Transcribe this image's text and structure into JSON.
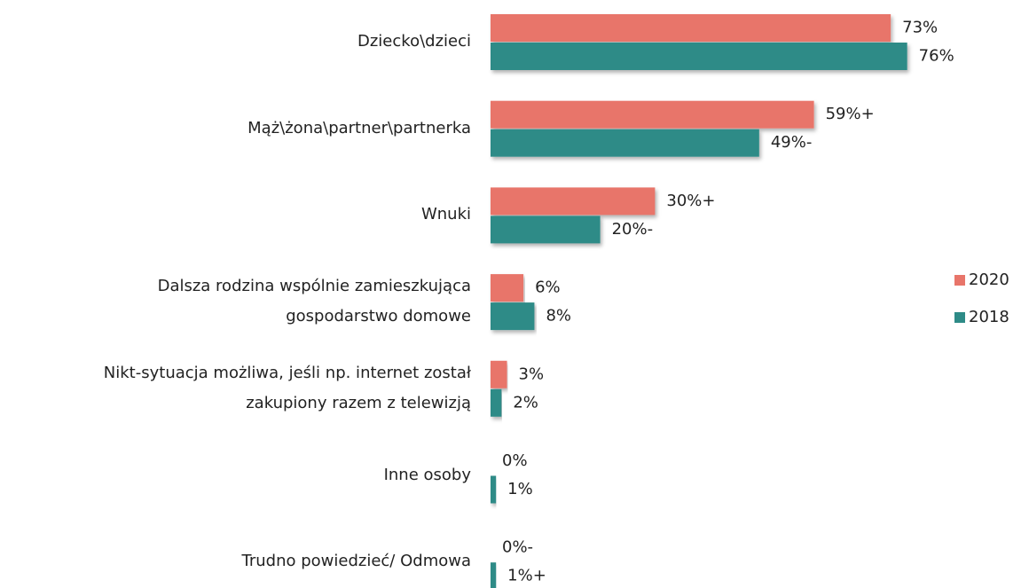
{
  "chart_data": {
    "type": "bar",
    "orientation": "horizontal",
    "categories": [
      "Dziecko\\dzieci",
      "Mąż\\żona\\partner\\partnerka",
      "Wnuki",
      "Dalsza rodzina wspólnie zamieszkująca\ngospodarstwo domowe",
      "Nikt-sytuacja możliwa, jeśli np. internet został\nzakupiony razem z telewizją",
      "Inne osoby",
      "Trudno powiedzieć/ Odmowa"
    ],
    "series": [
      {
        "name": "2020",
        "color": "#e8756a",
        "values": [
          73,
          59,
          30,
          6,
          3,
          0,
          0
        ],
        "value_labels": [
          "73%",
          "59%+",
          "30%+",
          "6%",
          "3%",
          "0%",
          "0%-"
        ]
      },
      {
        "name": "2018",
        "color": "#2e8b87",
        "values": [
          76,
          49,
          20,
          8,
          2,
          1,
          1
        ],
        "value_labels": [
          "76%",
          "49%-",
          "20%-",
          "8%",
          "2%",
          "1%",
          "1%+"
        ]
      }
    ],
    "legend": "right"
  }
}
